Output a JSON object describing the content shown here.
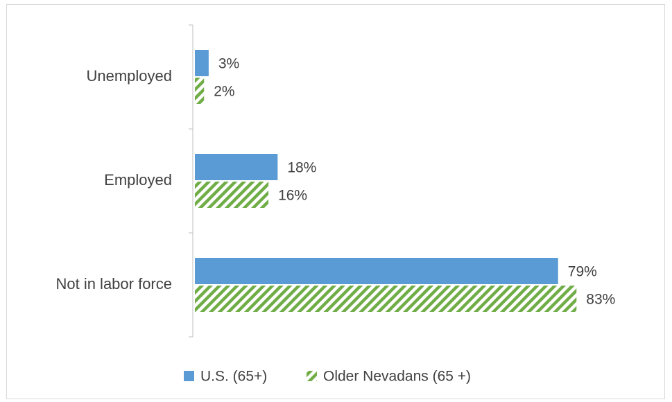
{
  "chart_data": {
    "type": "hbar",
    "categories": [
      "Unemployed",
      "Employed",
      "Not in labor force"
    ],
    "series": [
      {
        "name": "U.S. (65+)",
        "color": "#5b9bd5",
        "pattern": "solid",
        "values": [
          3,
          18,
          79
        ],
        "value_labels": [
          "3%",
          "18%",
          "79%"
        ]
      },
      {
        "name": "Older Nevadans (65 +)",
        "color": "#70ad47",
        "pattern": "diagonal-hatch",
        "values": [
          2,
          16,
          83
        ],
        "value_labels": [
          "2%",
          "16%",
          "83%"
        ]
      }
    ],
    "xlim": [
      0,
      100
    ],
    "legend": "bottom"
  }
}
